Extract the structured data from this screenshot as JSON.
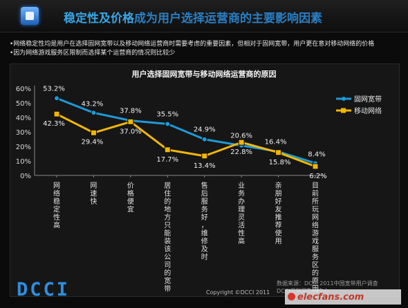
{
  "banner": {
    "title_highlight": "稳定性及价格",
    "title_rest": "成为用户选择运营商的主要影响因素"
  },
  "bullets": [
    "•网络稳定性均是用户在选择固网宽带以及移动网络运营商时需要考虑的重要因素，但相对于固网宽带，用户更在意对移动网络的价格",
    "•因为网络游戏服务区限制而选择某个运营商的情况则比较少"
  ],
  "footer": {
    "logo": "DCCI",
    "copyright": "Copyright ©DCCI 2011",
    "source_line1": "数据来源：DCCI 2011中国宽带用户调查",
    "source_line2": "DCCI互联网数据中心",
    "watermark": "elecfans.com"
  },
  "colors": {
    "broadband": "#1e9ad6",
    "mobile": "#f2b705",
    "title_accent": "#37a6e8"
  },
  "chart_data": {
    "type": "line",
    "title": "用户选择固网宽带与移动网络运营商的原因",
    "categories": [
      "网络稳定性高",
      "网速快",
      "价格便宜",
      "居住的地方只能装该公司的宽带",
      "售后服务好，维修及时",
      "业务办理灵活性高",
      "亲朋好友推荐使用",
      "目前所玩网络游戏服务区的原因"
    ],
    "series": [
      {
        "name": "固网宽带",
        "values": [
          53.2,
          43.2,
          37.8,
          35.5,
          24.9,
          20.6,
          16.4,
          8.4
        ],
        "labels": [
          "53.2%",
          "43.2%",
          "37.8%",
          "35.5%",
          "24.9%",
          "20.6%",
          "16.4%",
          "8.4%"
        ]
      },
      {
        "name": "移动网络",
        "values": [
          42.3,
          29.4,
          37.0,
          17.7,
          13.4,
          22.8,
          15.8,
          6.2
        ],
        "labels": [
          "42.3%",
          "29.4%",
          "37.0%",
          "17.7%",
          "13.4%",
          "22.8%",
          "15.8%",
          "6.2%"
        ]
      }
    ],
    "yticks": [
      "0%",
      "10%",
      "20%",
      "30%",
      "40%",
      "50%",
      "60%"
    ],
    "ylim": [
      0,
      60
    ],
    "grid": false,
    "legend": "top-right"
  }
}
